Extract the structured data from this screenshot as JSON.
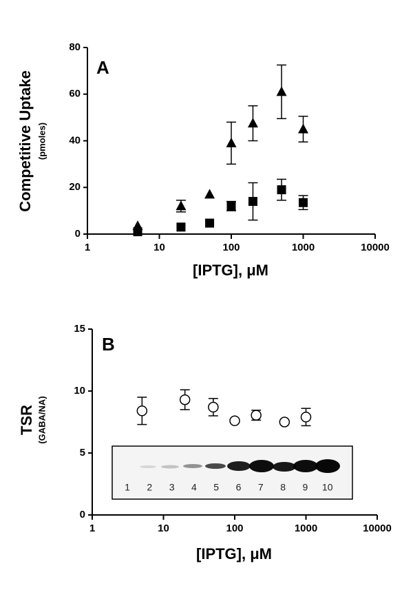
{
  "chart_data": [
    {
      "type": "scatter",
      "panel": "A",
      "y_label": "Competitive Uptake",
      "y_sublabel": "(pmoles)",
      "x_label": "[IPTG], μM",
      "log_x": true,
      "xlim": [
        1,
        10000
      ],
      "xticks": [
        1,
        10,
        100,
        1000,
        10000
      ],
      "ylim": [
        0,
        80
      ],
      "yticks": [
        0,
        20,
        40,
        60,
        80
      ],
      "series": [
        {
          "marker": "triangle",
          "color": "#000000",
          "x": [
            5,
            20,
            50,
            100,
            200,
            500,
            1000
          ],
          "values": [
            3.5,
            12,
            17,
            39,
            47.5,
            61,
            45
          ],
          "errors": [
            null,
            2.5,
            null,
            9,
            7.5,
            11.5,
            5.5
          ]
        },
        {
          "marker": "square",
          "color": "#000000",
          "x": [
            5,
            20,
            50,
            100,
            200,
            500,
            1000
          ],
          "values": [
            1,
            3,
            4.7,
            12,
            14,
            19,
            13.5
          ],
          "errors": [
            null,
            null,
            null,
            2,
            8,
            4.5,
            3
          ]
        }
      ]
    },
    {
      "type": "scatter",
      "panel": "B",
      "y_label": "TSR",
      "y_sublabel": "(GABA/NA)",
      "x_label": "[IPTG], μM",
      "log_x": true,
      "xlim": [
        1,
        10000
      ],
      "xticks": [
        1,
        10,
        100,
        1000,
        10000
      ],
      "ylim": [
        0,
        15
      ],
      "yticks": [
        0,
        5,
        10,
        15
      ],
      "inset_lanes": [
        "1",
        "2",
        "3",
        "4",
        "5",
        "6",
        "7",
        "8",
        "9",
        "10"
      ],
      "series": [
        {
          "marker": "open-circle",
          "color": "#000000",
          "x": [
            5,
            20,
            50,
            100,
            200,
            500,
            1000
          ],
          "values": [
            8.4,
            9.3,
            8.7,
            7.6,
            8.05,
            7.5,
            7.9
          ],
          "errors": [
            1.1,
            0.8,
            0.7,
            null,
            0.4,
            null,
            0.7
          ]
        }
      ]
    }
  ]
}
